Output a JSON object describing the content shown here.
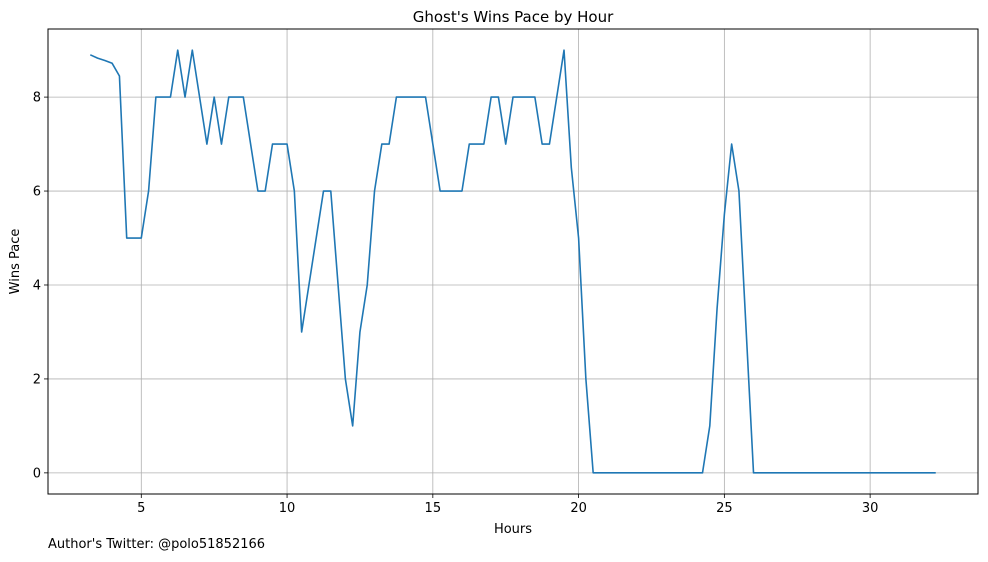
{
  "footer": {
    "text": "Author's Twitter: @polo51852166"
  },
  "chart_data": {
    "type": "line",
    "title": "Ghost's Wins Pace by Hour",
    "xlabel": "Hours",
    "ylabel": "Wins Pace",
    "xlim": [
      1.8,
      33.7
    ],
    "ylim": [
      -0.45,
      9.45
    ],
    "xticks": [
      5,
      10,
      15,
      20,
      25,
      30
    ],
    "yticks": [
      0,
      2,
      4,
      6,
      8
    ],
    "grid": true,
    "legend": "none",
    "color": "#1f77b4",
    "series": [
      {
        "x": [
          3.25,
          3.5,
          3.75,
          4.0,
          4.25,
          4.5,
          4.75,
          5.0,
          5.25,
          5.5,
          5.75,
          6.0,
          6.25,
          6.5,
          6.75,
          7.0,
          7.25,
          7.5,
          7.75,
          8.0,
          8.25,
          8.5,
          8.75,
          9.0,
          9.25,
          9.5,
          9.75,
          10.0,
          10.25,
          10.5,
          10.75,
          11.0,
          11.25,
          11.5,
          11.75,
          12.0,
          12.25,
          12.5,
          12.75,
          13.0,
          13.25,
          13.5,
          13.75,
          14.0,
          14.25,
          14.5,
          14.75,
          15.0,
          15.25,
          15.5,
          15.75,
          16.0,
          16.25,
          16.5,
          16.75,
          17.0,
          17.25,
          17.5,
          17.75,
          18.0,
          18.25,
          18.5,
          18.75,
          19.0,
          19.25,
          19.5,
          19.75,
          20.0,
          20.25,
          20.5,
          24.25,
          24.5,
          24.75,
          25.0,
          25.25,
          25.5,
          25.75,
          26.0,
          26.25,
          32.25
        ],
        "y": [
          8.9,
          8.83,
          8.78,
          8.72,
          8.45,
          5,
          5,
          5,
          6,
          8,
          8,
          8,
          9,
          8,
          9,
          8,
          7,
          8,
          7,
          8,
          8,
          8,
          7,
          6,
          6,
          7,
          7,
          7,
          6,
          3,
          4,
          5,
          6,
          6,
          4,
          2,
          1,
          3,
          4,
          6,
          7,
          7,
          8,
          8,
          8,
          8,
          8,
          7,
          6,
          6,
          6,
          6,
          7,
          7,
          7,
          8,
          8,
          7,
          8,
          8,
          8,
          8,
          7,
          7,
          8,
          9,
          6.5,
          5,
          2,
          0,
          0,
          1,
          3.5,
          5.5,
          7,
          6,
          3,
          0,
          0,
          0
        ]
      }
    ]
  }
}
